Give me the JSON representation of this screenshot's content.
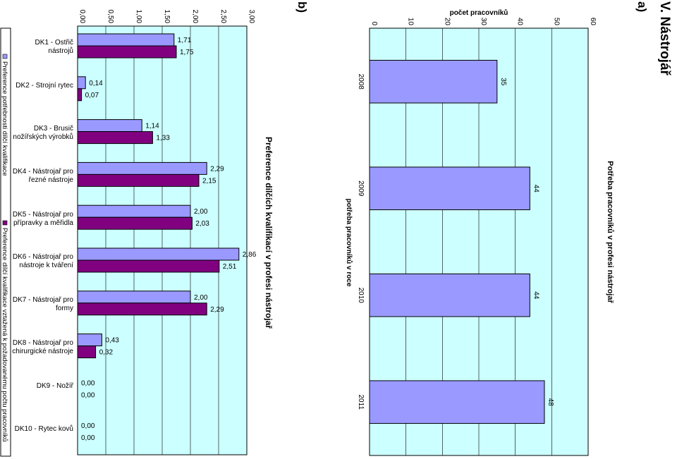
{
  "section_heading": "V. Nástrojář",
  "part_a_label": "a)",
  "part_b_label": "b)",
  "chart_data": [
    {
      "type": "bar",
      "title": "Potřeba pracovníků v profesi nástrojař",
      "xlabel": "potřeba pracovníků v roce",
      "ylabel": "počet pracovníků",
      "categories": [
        "2008",
        "2009",
        "2010",
        "2011"
      ],
      "values": [
        35,
        44,
        44,
        48
      ],
      "ylim": [
        0,
        60
      ],
      "yticks": [
        "0",
        "10",
        "20",
        "30",
        "40",
        "50",
        "60"
      ],
      "colors": {
        "bar": "#9999ff",
        "plot_bg": "#ccffff"
      }
    },
    {
      "type": "bar",
      "title": "Preference dílčích kvalifikací v profesi nástrojař",
      "categories": [
        "DK1 - Ostřič nástrojů",
        "DK2 - Strojní rytec",
        "DK3 - Brusič nožířských výrobků",
        "DK4 - Nástrojař pro řezné nástroje",
        "DK5 - Nástrojař pro přípravky a měřidla",
        "DK6 - Nástrojař pro nástroje k tváření",
        "DK7 - Nástrojař pro formy",
        "DK8 - Nástrojař pro chirurgické nástroje",
        "DK9 - Nožíř",
        "DK10 - Rytec kovů"
      ],
      "series": [
        {
          "name": "Preference potřebnosti dílčí kvalifikace",
          "values": [
            1.71,
            0.14,
            1.14,
            2.29,
            2.0,
            2.86,
            2.0,
            0.43,
            0.0,
            0.0
          ],
          "labels": [
            "1,71",
            "0,14",
            "1,14",
            "2,29",
            "2,00",
            "2,86",
            "2,00",
            "0,43",
            "0,00",
            "0,00"
          ],
          "color": "#9999ff"
        },
        {
          "name": "Preference dílčí kvalifikace vztažená k požadovanému počtu pracovníků",
          "values": [
            1.75,
            0.07,
            1.33,
            2.15,
            2.03,
            2.51,
            2.29,
            0.32,
            0.0,
            0.0
          ],
          "labels": [
            "1,75",
            "0,07",
            "1,33",
            "2,15",
            "2,03",
            "2,51",
            "2,29",
            "0,32",
            "0,00",
            "0,00"
          ],
          "color": "#800080"
        }
      ],
      "ylim": [
        0,
        3
      ],
      "yticks": [
        "0,00",
        "0,50",
        "1,00",
        "1,50",
        "2,00",
        "2,50",
        "3,00"
      ],
      "colors": {
        "plot_bg": "#ccffff"
      }
    }
  ]
}
